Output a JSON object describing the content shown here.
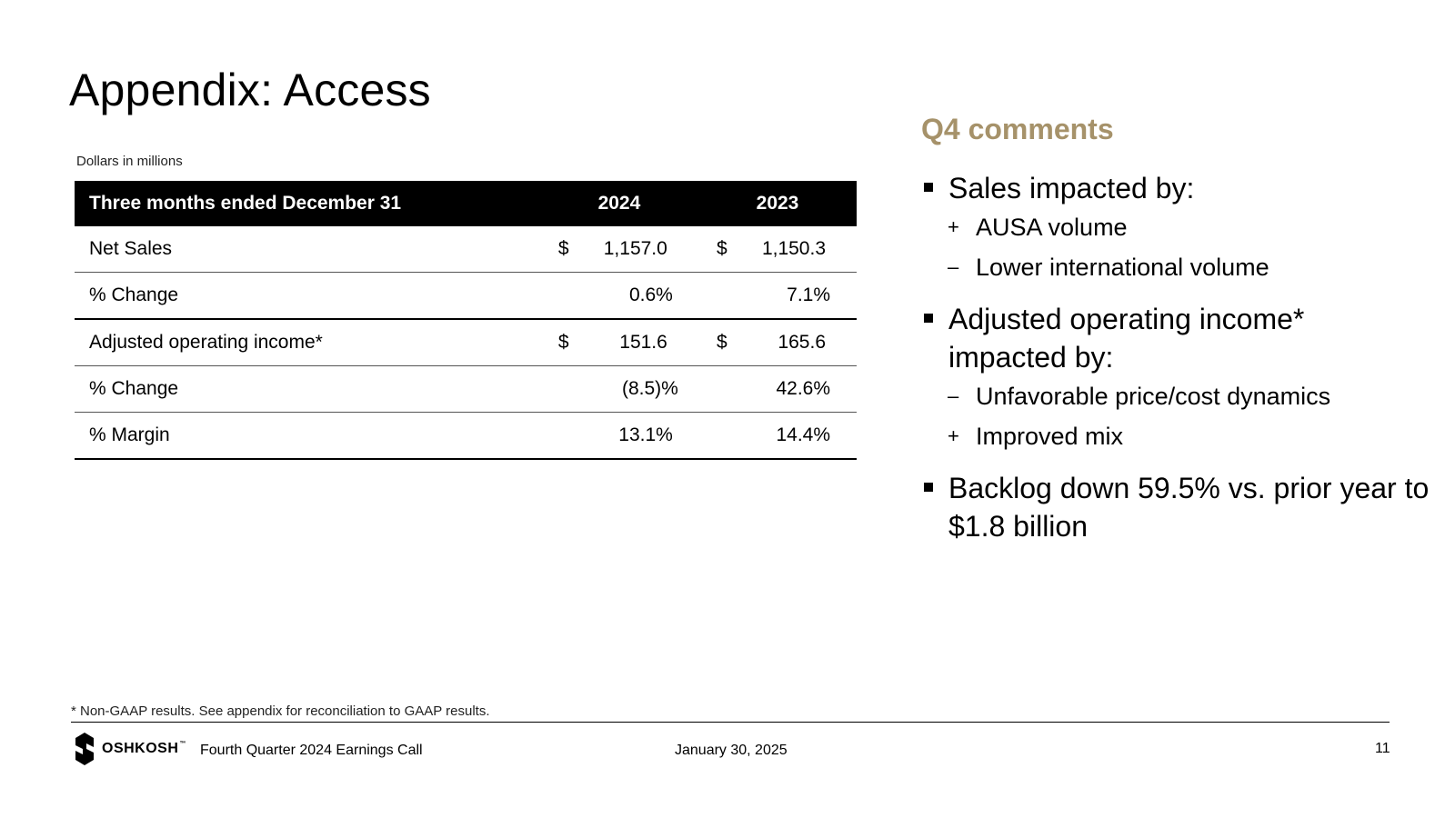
{
  "slide": {
    "title": "Appendix: Access",
    "units_note": "Dollars in millions"
  },
  "table": {
    "headers": [
      "Three months ended December 31",
      "2024",
      "2023"
    ],
    "rows": [
      {
        "label": "Net Sales",
        "c2024_cur": "$",
        "c2024": "1,157.0",
        "c2023_cur": "$",
        "c2023": "1,150.3"
      },
      {
        "label": "% Change",
        "c2024": "0.6%",
        "c2023": "7.1%"
      },
      {
        "label": "Adjusted operating income*",
        "c2024_cur": "$",
        "c2024": "151.6",
        "c2023_cur": "$",
        "c2023": "165.6"
      },
      {
        "label": "% Change",
        "c2024": "(8.5)%",
        "c2023": "42.6%"
      },
      {
        "label": "% Margin",
        "c2024": "13.1%",
        "c2023": "14.4%"
      }
    ]
  },
  "comments": {
    "title": "Q4 comments",
    "items": [
      {
        "text": "Sales impacted by:",
        "subs": [
          {
            "marker": "+",
            "text": "AUSA volume"
          },
          {
            "marker": "–",
            "text": "Lower international volume"
          }
        ]
      },
      {
        "text": "Adjusted operating income* impacted by:",
        "subs": [
          {
            "marker": "–",
            "text": "Unfavorable price/cost dynamics"
          },
          {
            "marker": "+",
            "text": "Improved mix"
          }
        ]
      },
      {
        "text": "Backlog down 59.5% vs. prior year to $1.8 billion",
        "subs": []
      }
    ]
  },
  "footer": {
    "footnote": "* Non-GAAP results. See appendix for reconciliation to GAAP results.",
    "logo_text": "OSHKOSH",
    "logo_tm": "™",
    "event": "Fourth Quarter 2024 Earnings Call",
    "date": "January 30, 2025",
    "page_number": "11"
  },
  "colors": {
    "accent_gold": "#a6926a",
    "table_header_bg": "#000000"
  }
}
